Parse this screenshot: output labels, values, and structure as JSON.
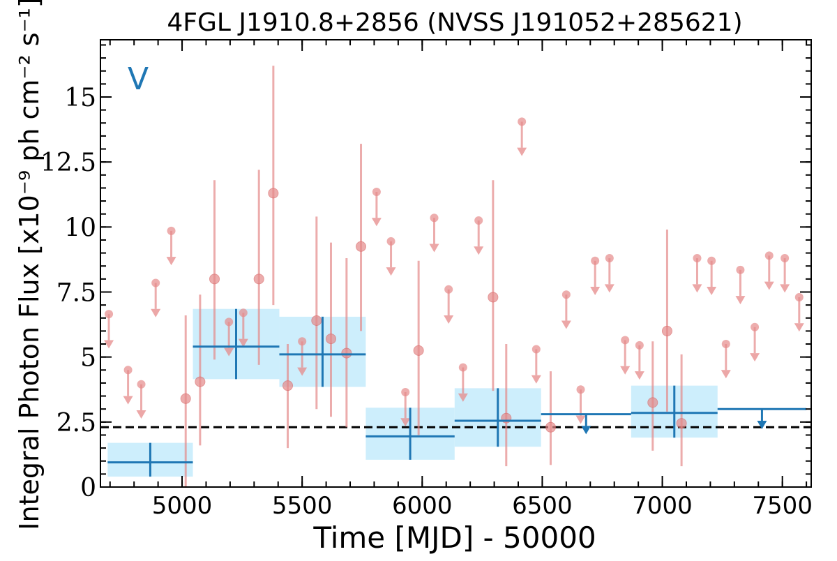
{
  "chart_data": {
    "type": "scatter",
    "title": "4FGL J1910.8+2856 (NVSS J191052+285621)",
    "xlabel": "Time [MJD] - 50000",
    "ylabel": "Integral Photon Flux [x10⁻⁹ ph cm⁻² s⁻¹]",
    "panel_label": "V",
    "xlim": [
      4660,
      7620
    ],
    "ylim": [
      0,
      17.2
    ],
    "x_ticks": [
      5000,
      5500,
      6000,
      6500,
      7000,
      7500
    ],
    "x_tick_labels": [
      "5000",
      "5500",
      "6000",
      "6500",
      "7000",
      "7500"
    ],
    "y_ticks": [
      0,
      2.5,
      5,
      7.5,
      10,
      12.5,
      15
    ],
    "y_tick_labels": [
      "0",
      "2.5",
      "5",
      "7.5",
      "10",
      "12.5",
      "15"
    ],
    "x_minor_step": 100,
    "y_minor_step": 0.5,
    "baseline_flux": 2.3,
    "colors": {
      "short_bin": "#e58a8a",
      "long_bin": "#1f77b4",
      "long_bin_band": "#cdeefc",
      "baseline": "#000000",
      "panel_label": "#1f77b4"
    },
    "short_bins": {
      "detections": [
        {
          "x": 5015,
          "y": 3.4,
          "ylo": 0.0,
          "yhi": 6.6
        },
        {
          "x": 5075,
          "y": 4.05,
          "ylo": 1.6,
          "yhi": 7.4
        },
        {
          "x": 5135,
          "y": 8.0,
          "ylo": 4.9,
          "yhi": 11.8
        },
        {
          "x": 5320,
          "y": 8.0,
          "ylo": 4.7,
          "yhi": 12.2
        },
        {
          "x": 5380,
          "y": 11.3,
          "ylo": 7.0,
          "yhi": 16.2
        },
        {
          "x": 5440,
          "y": 3.9,
          "ylo": 1.5,
          "yhi": 5.5
        },
        {
          "x": 5560,
          "y": 6.4,
          "ylo": 3.0,
          "yhi": 10.4
        },
        {
          "x": 5620,
          "y": 5.7,
          "ylo": 2.7,
          "yhi": 9.4
        },
        {
          "x": 5685,
          "y": 5.15,
          "ylo": 2.3,
          "yhi": 8.8
        },
        {
          "x": 5745,
          "y": 9.25,
          "ylo": 6.0,
          "yhi": 13.2
        },
        {
          "x": 5985,
          "y": 5.25,
          "ylo": 2.0,
          "yhi": 8.7
        },
        {
          "x": 6295,
          "y": 7.3,
          "ylo": 3.7,
          "yhi": 11.8
        },
        {
          "x": 6350,
          "y": 2.65,
          "ylo": 0.8,
          "yhi": 5.5
        },
        {
          "x": 6535,
          "y": 2.3,
          "ylo": 0.85,
          "yhi": 4.45
        },
        {
          "x": 6960,
          "y": 3.25,
          "ylo": 1.4,
          "yhi": 5.6
        },
        {
          "x": 7020,
          "y": 6.0,
          "ylo": 2.9,
          "yhi": 9.9
        },
        {
          "x": 7080,
          "y": 2.45,
          "ylo": 0.8,
          "yhi": 5.1
        }
      ],
      "upper_limits": [
        {
          "x": 4695,
          "y": 6.65
        },
        {
          "x": 4775,
          "y": 4.5
        },
        {
          "x": 4830,
          "y": 3.95
        },
        {
          "x": 4890,
          "y": 7.85
        },
        {
          "x": 4955,
          "y": 9.85
        },
        {
          "x": 5195,
          "y": 6.35
        },
        {
          "x": 5255,
          "y": 6.7
        },
        {
          "x": 5500,
          "y": 5.6
        },
        {
          "x": 5810,
          "y": 11.35
        },
        {
          "x": 5870,
          "y": 9.45
        },
        {
          "x": 5930,
          "y": 3.65
        },
        {
          "x": 6050,
          "y": 10.35
        },
        {
          "x": 6110,
          "y": 7.6
        },
        {
          "x": 6170,
          "y": 4.6
        },
        {
          "x": 6235,
          "y": 10.25
        },
        {
          "x": 6415,
          "y": 14.05
        },
        {
          "x": 6475,
          "y": 5.3
        },
        {
          "x": 6600,
          "y": 7.4
        },
        {
          "x": 6660,
          "y": 3.75
        },
        {
          "x": 6720,
          "y": 8.7
        },
        {
          "x": 6780,
          "y": 8.8
        },
        {
          "x": 6845,
          "y": 5.65
        },
        {
          "x": 6905,
          "y": 5.45
        },
        {
          "x": 7145,
          "y": 8.8
        },
        {
          "x": 7205,
          "y": 8.7
        },
        {
          "x": 7265,
          "y": 5.5
        },
        {
          "x": 7325,
          "y": 8.35
        },
        {
          "x": 7385,
          "y": 6.15
        },
        {
          "x": 7445,
          "y": 8.9
        },
        {
          "x": 7510,
          "y": 8.8
        },
        {
          "x": 7570,
          "y": 7.3
        }
      ]
    },
    "long_bins": {
      "detections": [
        {
          "x0": 4690,
          "x1": 5045,
          "y": 0.95,
          "ylo": 0.4,
          "yhi": 1.7
        },
        {
          "x0": 5045,
          "x1": 5405,
          "y": 5.4,
          "ylo": 4.15,
          "yhi": 6.85
        },
        {
          "x0": 5405,
          "x1": 5765,
          "y": 5.1,
          "ylo": 3.85,
          "yhi": 6.55
        },
        {
          "x0": 5765,
          "x1": 6135,
          "y": 1.95,
          "ylo": 1.05,
          "yhi": 3.05
        },
        {
          "x0": 6135,
          "x1": 6495,
          "y": 2.55,
          "ylo": 1.55,
          "yhi": 3.8
        },
        {
          "x0": 6870,
          "x1": 7230,
          "y": 2.85,
          "ylo": 1.9,
          "yhi": 3.9
        }
      ],
      "upper_limits": [
        {
          "x0": 6495,
          "x1": 6870,
          "y": 2.8
        },
        {
          "x0": 7230,
          "x1": 7600,
          "y": 3.0
        }
      ]
    }
  }
}
